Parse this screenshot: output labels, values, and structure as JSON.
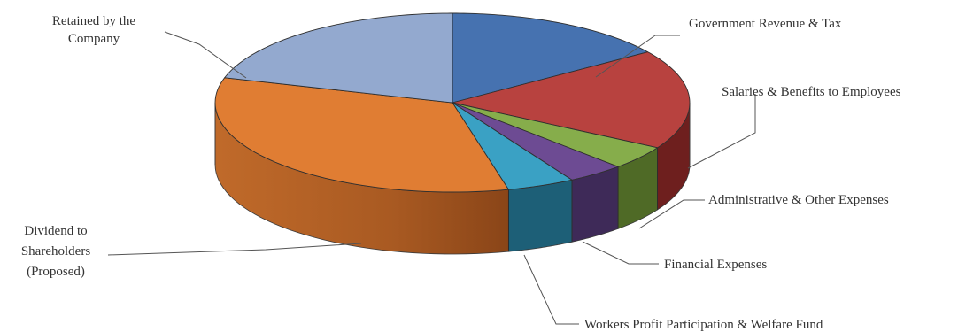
{
  "chart_data": {
    "type": "pie",
    "title": "",
    "legend": "none",
    "slices": [
      {
        "label_lines": [
          "Government Revenue & Tax"
        ],
        "value": 15.4,
        "color": "#4672b0",
        "side_color": "#2b4a7a"
      },
      {
        "label_lines": [
          "Salaries & Benefits to Employees"
        ],
        "value": 18.0,
        "color": "#b8423f",
        "side_color": "#6e1f1e"
      },
      {
        "label_lines": [
          "Administrative & Other Expenses"
        ],
        "value": 4.3,
        "color": "#86ad4b",
        "side_color": "#4f6a26"
      },
      {
        "label_lines": [
          "Financial Expenses"
        ],
        "value": 3.9,
        "color": "#6d4b93",
        "side_color": "#3e2a58"
      },
      {
        "label_lines": [
          "Workers Profit Participation & Welfare Fund"
        ],
        "value": 4.6,
        "color": "#3aa1c4",
        "side_color": "#1d5f77"
      },
      {
        "label_lines": [
          "Dividend to",
          "Shareholders",
          "(Proposed)"
        ],
        "value": 33.3,
        "color": "#e07d33",
        "side_color": "#9a5220"
      },
      {
        "label_lines": [
          "Retained by the",
          "Company"
        ],
        "value": 20.5,
        "color": "#93a9cf",
        "side_color": "#5b6f93"
      }
    ]
  }
}
